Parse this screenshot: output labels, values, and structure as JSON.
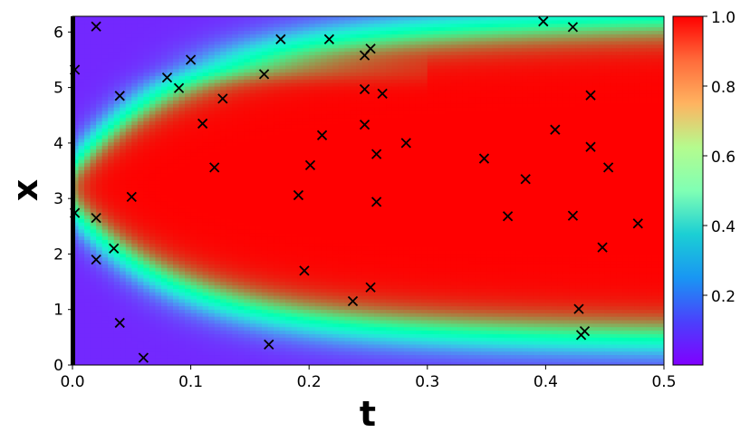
{
  "chart_data": {
    "type": "heatmap",
    "title": "",
    "xlabel": "t",
    "ylabel": "x",
    "xlim": [
      0.0,
      0.5
    ],
    "ylim": [
      0.0,
      6.283
    ],
    "xticks": [
      0.0,
      0.1,
      0.2,
      0.3,
      0.4,
      0.5
    ],
    "xtick_labels": [
      "0.0",
      "0.1",
      "0.2",
      "0.3",
      "0.4",
      "0.5"
    ],
    "yticks": [
      0,
      1,
      2,
      3,
      4,
      5,
      6
    ],
    "ytick_labels": [
      "0",
      "1",
      "2",
      "3",
      "4",
      "5",
      "6"
    ],
    "colormap": "rainbow",
    "colorbar": {
      "range": [
        0.0,
        1.0
      ],
      "ticks": [
        0.2,
        0.4,
        0.6,
        0.8,
        1.0
      ],
      "tick_labels": [
        "0.2",
        "0.4",
        "0.6",
        "0.8",
        "1.0"
      ]
    },
    "marker_style": "x",
    "marker_color": "#000000",
    "points": [
      {
        "t": 0.002,
        "x": 5.32
      },
      {
        "t": 0.02,
        "x": 6.1
      },
      {
        "t": 0.002,
        "x": 2.74
      },
      {
        "t": 0.02,
        "x": 2.65
      },
      {
        "t": 0.02,
        "x": 1.9
      },
      {
        "t": 0.035,
        "x": 2.1
      },
      {
        "t": 0.04,
        "x": 4.85
      },
      {
        "t": 0.04,
        "x": 0.76
      },
      {
        "t": 0.05,
        "x": 3.03
      },
      {
        "t": 0.06,
        "x": 0.13
      },
      {
        "t": 0.08,
        "x": 5.18
      },
      {
        "t": 0.09,
        "x": 4.99
      },
      {
        "t": 0.1,
        "x": 5.5
      },
      {
        "t": 0.11,
        "x": 4.35
      },
      {
        "t": 0.12,
        "x": 3.56
      },
      {
        "t": 0.127,
        "x": 4.8
      },
      {
        "t": 0.162,
        "x": 5.24
      },
      {
        "t": 0.166,
        "x": 0.37
      },
      {
        "t": 0.176,
        "x": 5.87
      },
      {
        "t": 0.191,
        "x": 3.06
      },
      {
        "t": 0.196,
        "x": 1.7
      },
      {
        "t": 0.201,
        "x": 3.6
      },
      {
        "t": 0.211,
        "x": 4.14
      },
      {
        "t": 0.217,
        "x": 5.87
      },
      {
        "t": 0.237,
        "x": 1.15
      },
      {
        "t": 0.247,
        "x": 5.58
      },
      {
        "t": 0.247,
        "x": 4.97
      },
      {
        "t": 0.247,
        "x": 4.33
      },
      {
        "t": 0.252,
        "x": 5.7
      },
      {
        "t": 0.252,
        "x": 1.4
      },
      {
        "t": 0.257,
        "x": 3.8
      },
      {
        "t": 0.257,
        "x": 2.94
      },
      {
        "t": 0.262,
        "x": 4.89
      },
      {
        "t": 0.282,
        "x": 4.0
      },
      {
        "t": 0.348,
        "x": 3.72
      },
      {
        "t": 0.368,
        "x": 2.68
      },
      {
        "t": 0.383,
        "x": 3.35
      },
      {
        "t": 0.398,
        "x": 6.19
      },
      {
        "t": 0.408,
        "x": 4.24
      },
      {
        "t": 0.423,
        "x": 6.09
      },
      {
        "t": 0.423,
        "x": 2.69
      },
      {
        "t": 0.428,
        "x": 1.01
      },
      {
        "t": 0.43,
        "x": 0.54
      },
      {
        "t": 0.433,
        "x": 0.61
      },
      {
        "t": 0.438,
        "x": 4.86
      },
      {
        "t": 0.438,
        "x": 3.93
      },
      {
        "t": 0.448,
        "x": 2.12
      },
      {
        "t": 0.453,
        "x": 3.56
      },
      {
        "t": 0.478,
        "x": 2.55
      }
    ],
    "field_description": "solution u(t,x) in [0,1]; low (purple) near x=0 and x=2pi at small t, high (red) across most of the domain for later t"
  }
}
